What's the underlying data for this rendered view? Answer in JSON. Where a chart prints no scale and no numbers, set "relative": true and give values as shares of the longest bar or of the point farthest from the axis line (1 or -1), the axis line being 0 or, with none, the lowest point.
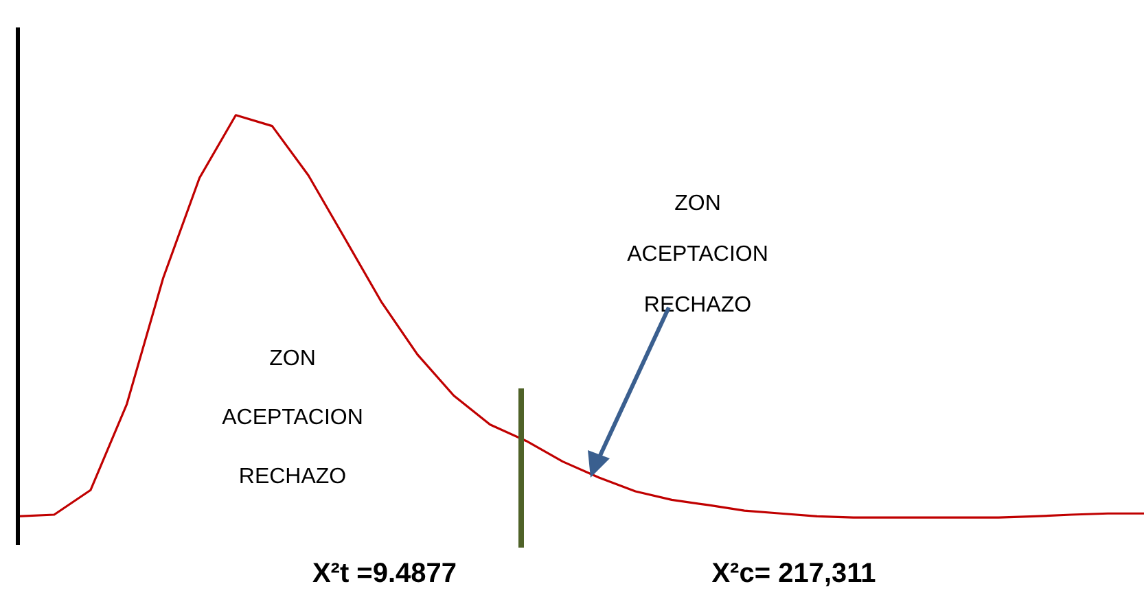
{
  "chart_data": {
    "type": "line",
    "relative": true,
    "marker": "none",
    "line_style": "solid",
    "categories": [
      null,
      null,
      null,
      null,
      null,
      null,
      null,
      null,
      null,
      null,
      null,
      null,
      null,
      null,
      null,
      null,
      null,
      null,
      null,
      null,
      null,
      null,
      null,
      null,
      null,
      null,
      null,
      null,
      null,
      null,
      null,
      null
    ],
    "series": [
      {
        "color": "#c00000",
        "values": [
          0.003,
          0.007,
          0.068,
          0.282,
          0.595,
          0.844,
          1,
          0.973,
          0.85,
          0.694,
          0.537,
          0.405,
          0.303,
          0.231,
          0.19,
          0.139,
          0.099,
          0.065,
          0.044,
          0.031,
          0.017,
          0.01,
          0.003,
          0,
          0,
          0,
          0,
          0,
          0.003,
          0.007,
          0.01,
          0.01
        ]
      }
    ],
    "annotations": [
      "ZON\nACEPTACION\nRECHAZO",
      "ZON\nACEPTACION\nRECHAZO",
      "X²t =9.4877",
      "X²c= 217,311"
    ]
  }
}
